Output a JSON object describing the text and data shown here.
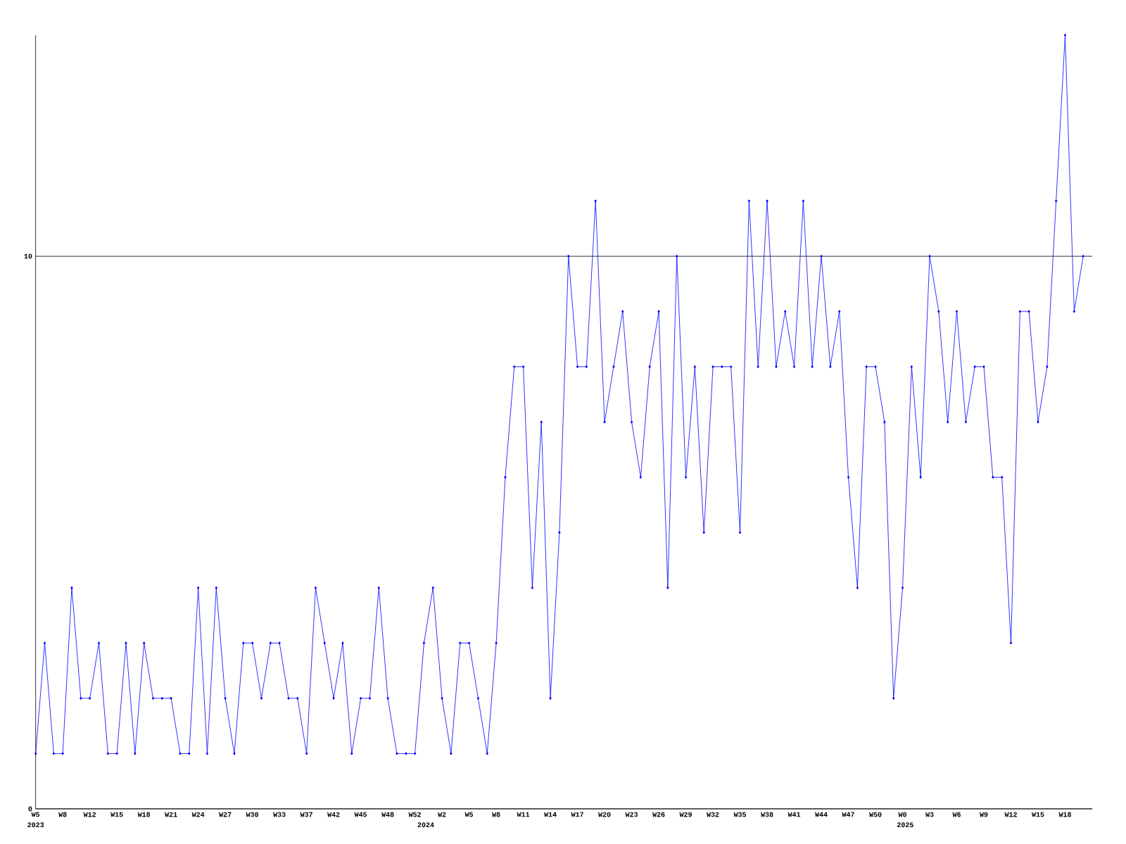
{
  "chart_data": {
    "type": "line",
    "categories": [
      "W5",
      null,
      null,
      "W8",
      null,
      null,
      "W12",
      null,
      null,
      "W15",
      null,
      null,
      "W18",
      null,
      null,
      "W21",
      null,
      null,
      "W24",
      null,
      null,
      "W27",
      null,
      null,
      "W30",
      null,
      null,
      "W33",
      null,
      null,
      "W37",
      null,
      null,
      "W42",
      null,
      null,
      "W45",
      null,
      null,
      "W48",
      null,
      null,
      "W52",
      null,
      null,
      "W2",
      null,
      null,
      "W5",
      null,
      null,
      "W8",
      null,
      null,
      "W11",
      null,
      null,
      "W14",
      null,
      null,
      "W17",
      null,
      null,
      "W20",
      null,
      null,
      "W23",
      null,
      null,
      "W26",
      null,
      null,
      "W29",
      null,
      null,
      "W32",
      null,
      null,
      "W35",
      null,
      null,
      "W38",
      null,
      null,
      "W41",
      null,
      null,
      "W44",
      null,
      null,
      "W47",
      null,
      null,
      "W50",
      null,
      null,
      "W0",
      null,
      null,
      "W3",
      null,
      null,
      "W6",
      null,
      null,
      "W9",
      null,
      null,
      "W12",
      null,
      null,
      "W15",
      null,
      null,
      "W18",
      null,
      null
    ],
    "values": [
      1,
      3,
      1,
      1,
      4,
      2,
      2,
      3,
      1,
      1,
      3,
      1,
      3,
      2,
      2,
      2,
      1,
      1,
      4,
      1,
      4,
      2,
      1,
      3,
      3,
      2,
      3,
      3,
      2,
      2,
      1,
      4,
      3,
      2,
      3,
      1,
      2,
      2,
      4,
      2,
      1,
      1,
      1,
      3,
      4,
      2,
      1,
      3,
      3,
      2,
      1,
      3,
      6,
      8,
      8,
      4,
      7,
      2,
      5,
      10,
      8,
      8,
      11,
      7,
      8,
      9,
      7,
      6,
      8,
      9,
      4,
      10,
      6,
      8,
      5,
      8,
      8,
      8,
      5,
      11,
      8,
      11,
      8,
      9,
      8,
      11,
      8,
      10,
      8,
      9,
      6,
      4,
      8,
      8,
      7,
      2,
      4,
      8,
      6,
      10,
      9,
      7,
      9,
      7,
      8,
      8,
      6,
      6,
      3,
      9,
      9,
      7,
      8,
      11,
      14,
      9,
      10
    ],
    "color": "#0000ff",
    "ylim": [
      0,
      14
    ],
    "yticks": [
      0,
      10
    ],
    "grid": "y",
    "marker": "diamond",
    "line_style": "solid",
    "annotations": [
      "2023",
      "2024",
      "2025"
    ]
  }
}
